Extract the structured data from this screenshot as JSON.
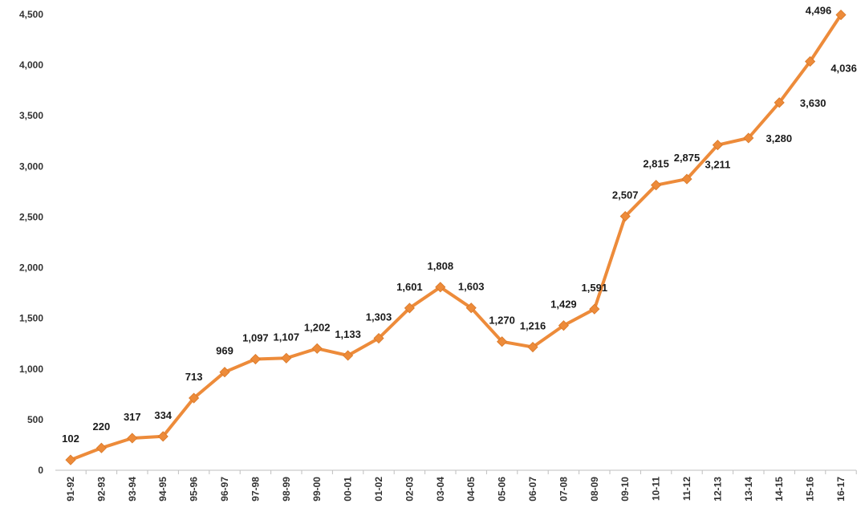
{
  "chart_data": {
    "type": "line",
    "title": "",
    "xlabel": "",
    "ylabel": "",
    "ylim": [
      0,
      4500
    ],
    "yticks": [
      0,
      500,
      1000,
      1500,
      2000,
      2500,
      3000,
      3500,
      4000,
      4500
    ],
    "ytick_labels": [
      "0",
      "500",
      "1,000",
      "1,500",
      "2,000",
      "2,500",
      "3,000",
      "3,500",
      "4,000",
      "4,500"
    ],
    "grid": false,
    "legend": "none",
    "line_color": "#ED8B3A",
    "categories": [
      "91-92",
      "92-93",
      "93-94",
      "94-95",
      "95-96",
      "96-97",
      "97-98",
      "98-99",
      "99-00",
      "00-01",
      "01-02",
      "02-03",
      "03-04",
      "04-05",
      "05-06",
      "06-07",
      "07-08",
      "08-09",
      "09-10",
      "10-11",
      "11-12",
      "12-13",
      "13-14",
      "14-15",
      "15-16",
      "16-17"
    ],
    "series": [
      {
        "values": [
          102,
          220,
          317,
          334,
          713,
          969,
          1097,
          1107,
          1202,
          1133,
          1303,
          1601,
          1808,
          1603,
          1270,
          1216,
          1429,
          1591,
          2507,
          2815,
          2875,
          3211,
          3280,
          3630,
          4036,
          4496
        ],
        "labels": [
          "102",
          "220",
          "317",
          "334",
          "713",
          "969",
          "1,097",
          "1,107",
          "1,202",
          "1,133",
          "1,303",
          "1,601",
          "1,808",
          "1,603",
          "1,270",
          "1,216",
          "1,429",
          "1,591",
          "2,507",
          "2,815",
          "2,875",
          "3,211",
          "3,280",
          "3,630",
          "4,036",
          "4,496"
        ]
      }
    ]
  }
}
